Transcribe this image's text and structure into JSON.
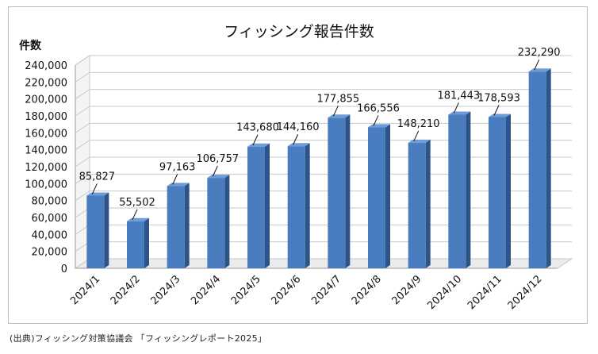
{
  "chart_data": {
    "type": "bar",
    "title": "フィッシング報告件数",
    "ylabel": "件数",
    "xlabel": "",
    "categories": [
      "2024/1",
      "2024/2",
      "2024/3",
      "2024/4",
      "2024/5",
      "2024/6",
      "2024/7",
      "2024/8",
      "2024/9",
      "2024/10",
      "2024/11",
      "2024/12"
    ],
    "values": [
      85827,
      55502,
      97163,
      106757,
      143680,
      144160,
      177855,
      166556,
      148210,
      181443,
      178593,
      232290
    ],
    "data_labels": [
      "85,827",
      "55,502",
      "97,163",
      "106,757",
      "143,680",
      "144,160",
      "177,855",
      "166,556",
      "148,210",
      "181,443",
      "178,593",
      "232,290"
    ],
    "yticks": [
      "0",
      "20,000",
      "40,000",
      "60,000",
      "80,000",
      "100,000",
      "120,000",
      "140,000",
      "160,000",
      "180,000",
      "200,000",
      "220,000",
      "240,000"
    ],
    "ylim": [
      0,
      240000
    ],
    "grid": true,
    "legend": "none",
    "bar_color": "#4a7dc0",
    "bar_side_color": "#2c5489",
    "bar_top_color": "#6f9bd6"
  },
  "source": "(出典)フィッシング対策協議会 「フィッシングレポート2025」"
}
